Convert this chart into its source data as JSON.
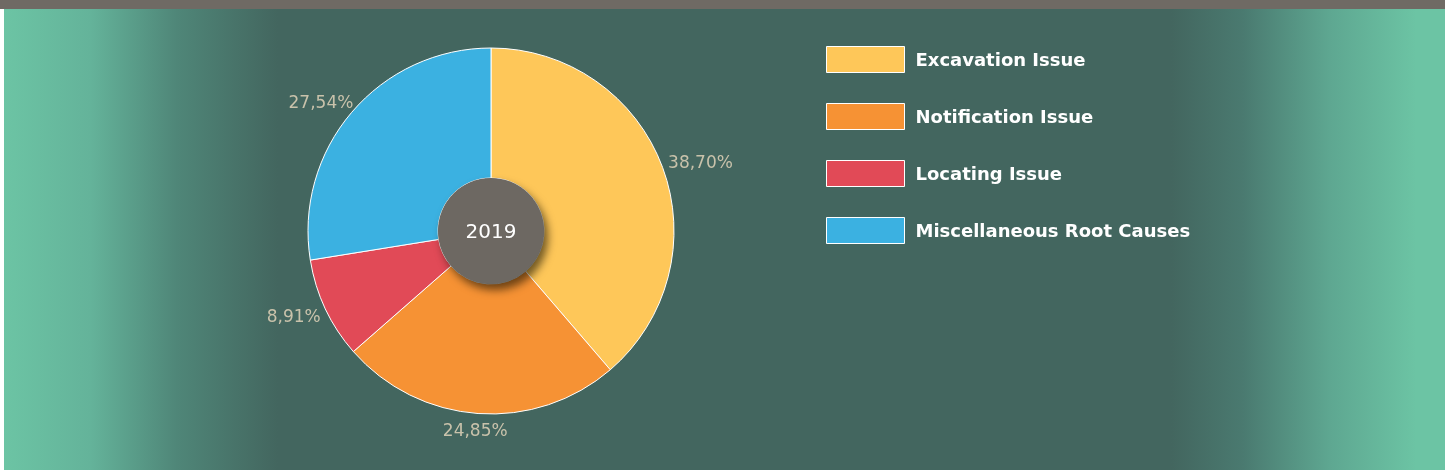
{
  "chart_data": {
    "type": "donut",
    "title": "2019",
    "categories": [
      "Excavation Issue",
      "Notification Issue",
      "Locating Issue",
      "Miscellaneous Root Causes"
    ],
    "values": [
      38.7,
      24.85,
      8.91,
      27.54
    ],
    "colors": [
      "#fec759",
      "#f69234",
      "#e14a57",
      "#3bb1e1"
    ],
    "value_labels": [
      "38,70%",
      "24,85%",
      "8,91%",
      "27,54%"
    ],
    "legend": "right"
  }
}
